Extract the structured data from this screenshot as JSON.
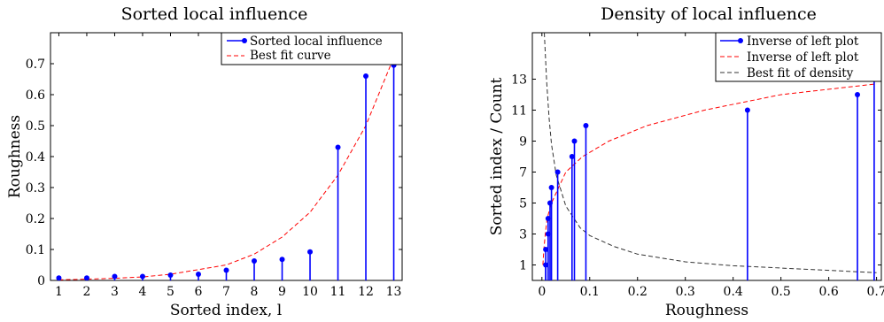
{
  "chart_data": [
    {
      "type": "stem",
      "title": "Sorted local influence",
      "xlabel": "Sorted index, l",
      "ylabel": "Roughness",
      "xlim": [
        0.7,
        13.3
      ],
      "ylim": [
        0,
        0.8
      ],
      "xticks": [
        1,
        2,
        3,
        4,
        5,
        6,
        7,
        8,
        9,
        10,
        11,
        12,
        13
      ],
      "yticks": [
        0,
        0.1,
        0.2,
        0.3,
        0.4,
        0.5,
        0.6,
        0.7
      ],
      "ytick_labels": [
        "0",
        "0.1",
        "0.2",
        "0.3",
        "0.4",
        "0.5",
        "0.6",
        "0.7"
      ],
      "legend_position": "top-right",
      "series": [
        {
          "name": "Sorted local influence",
          "style": "stem",
          "color": "#0000ff",
          "x": [
            1,
            2,
            3,
            4,
            5,
            6,
            7,
            8,
            9,
            10,
            11,
            12,
            13
          ],
          "y": [
            0.008,
            0.008,
            0.013,
            0.013,
            0.017,
            0.02,
            0.033,
            0.063,
            0.068,
            0.092,
            0.43,
            0.66,
            0.695
          ]
        },
        {
          "name": "Best fit curve",
          "style": "dashed",
          "color": "#ff0000",
          "x": [
            1,
            2,
            3,
            4,
            5,
            6,
            7,
            8,
            9,
            10,
            11,
            12,
            13
          ],
          "y": [
            0.002,
            0.004,
            0.007,
            0.011,
            0.02,
            0.035,
            0.05,
            0.085,
            0.14,
            0.22,
            0.34,
            0.5,
            0.72
          ]
        }
      ]
    },
    {
      "type": "stem",
      "title": "Density of local influence",
      "xlabel": "Roughness",
      "ylabel": "Sorted index / Count",
      "xlim": [
        -0.02,
        0.71
      ],
      "ylim": [
        0,
        16
      ],
      "xticks": [
        0,
        0.1,
        0.2,
        0.3,
        0.4,
        0.5,
        0.6,
        0.7
      ],
      "xtick_labels": [
        "0",
        "0.1",
        "0.2",
        "0.3",
        "0.4",
        "0.5",
        "0.6",
        "0.7"
      ],
      "yticks": [
        1,
        3,
        5,
        7,
        9,
        11,
        13
      ],
      "legend_position": "top-right",
      "series": [
        {
          "name": "Inverse of left plot",
          "style": "stem",
          "color": "#0000ff",
          "x": [
            0.008,
            0.008,
            0.013,
            0.013,
            0.017,
            0.02,
            0.033,
            0.063,
            0.068,
            0.092,
            0.43,
            0.66,
            0.695
          ],
          "y": [
            1,
            2,
            3,
            4,
            5,
            6,
            7,
            8,
            9,
            10,
            11,
            12,
            13
          ]
        },
        {
          "name": "Inverse of left plot",
          "style": "dashed",
          "color": "#ff0000",
          "x": [
            0.002,
            0.004,
            0.007,
            0.011,
            0.02,
            0.035,
            0.05,
            0.085,
            0.14,
            0.22,
            0.34,
            0.5,
            0.7
          ],
          "y": [
            1,
            2,
            3,
            4,
            5,
            6,
            7,
            8,
            9,
            10,
            11,
            12,
            12.7
          ]
        },
        {
          "name": "Best fit of density",
          "style": "dashed",
          "color": "#333333",
          "x": [
            0.005,
            0.01,
            0.015,
            0.02,
            0.03,
            0.05,
            0.08,
            0.1,
            0.15,
            0.2,
            0.3,
            0.4,
            0.5,
            0.6,
            0.7
          ],
          "y": [
            16,
            12.8,
            10.5,
            8.8,
            6.8,
            4.8,
            3.4,
            2.9,
            2.2,
            1.7,
            1.2,
            0.95,
            0.8,
            0.65,
            0.5
          ]
        }
      ]
    }
  ]
}
